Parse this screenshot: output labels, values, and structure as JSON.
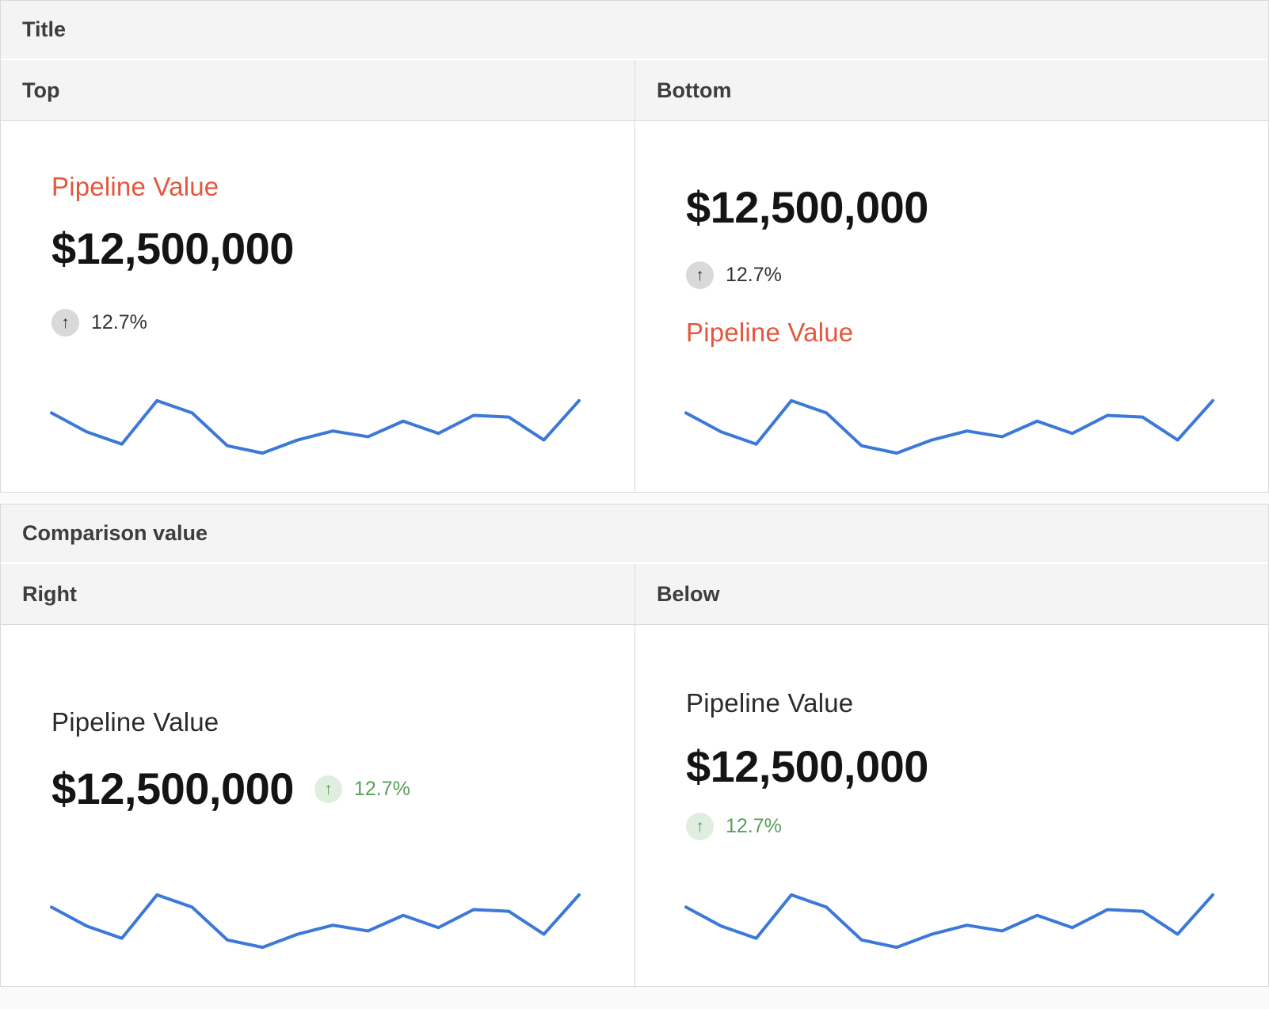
{
  "sections": {
    "title": {
      "header": "Title",
      "columns": [
        {
          "label": "Top"
        },
        {
          "label": "Bottom"
        }
      ]
    },
    "comparison": {
      "header": "Comparison value",
      "columns": [
        {
          "label": "Right"
        },
        {
          "label": "Below"
        }
      ]
    }
  },
  "kpi": {
    "title": "Pipeline Value",
    "value": "$12,500,000",
    "comparison_value": "12.7%",
    "arrow_icon": "↑"
  },
  "colors": {
    "title_accent": "#e4573d",
    "title_neutral": "#2b2b2b",
    "value_color": "#141414",
    "sparkline": "#3c78d8",
    "neutral_badge_bg": "#d9d9d9",
    "neutral_badge_fg": "#333333",
    "neutral_text": "#333333",
    "positive_badge_bg": "#dfeedf",
    "positive_fg": "#58a058",
    "header_bg": "#f4f4f4",
    "header_fg": "#3d3d3d",
    "border": "#d9d9d9"
  },
  "chart_data": [
    {
      "type": "line",
      "card": "Title / Top",
      "name": "Pipeline Value trend sparkline",
      "values": [
        49,
        26,
        11,
        64,
        49,
        9,
        0,
        16,
        27,
        20,
        39,
        24,
        46,
        44,
        16,
        64
      ],
      "units": "relative (no axes, ticks or labels shown)",
      "grid": false,
      "legend": false,
      "color": "#3c78d8"
    },
    {
      "type": "line",
      "card": "Title / Bottom",
      "name": "Pipeline Value trend sparkline",
      "values": [
        49,
        26,
        11,
        64,
        49,
        9,
        0,
        16,
        27,
        20,
        39,
        24,
        46,
        44,
        16,
        64
      ],
      "units": "relative (no axes, ticks or labels shown)",
      "grid": false,
      "legend": false,
      "color": "#3c78d8"
    },
    {
      "type": "line",
      "card": "Comparison value / Right",
      "name": "Pipeline Value trend sparkline",
      "values": [
        49,
        26,
        11,
        64,
        49,
        9,
        0,
        16,
        27,
        20,
        39,
        24,
        46,
        44,
        16,
        64
      ],
      "units": "relative (no axes, ticks or labels shown)",
      "grid": false,
      "legend": false,
      "color": "#3c78d8"
    },
    {
      "type": "line",
      "card": "Comparison value / Below",
      "name": "Pipeline Value trend sparkline",
      "values": [
        49,
        26,
        11,
        64,
        49,
        9,
        0,
        16,
        27,
        20,
        39,
        24,
        46,
        44,
        16,
        64
      ],
      "units": "relative (no axes, ticks or labels shown)",
      "grid": false,
      "legend": false,
      "color": "#3c78d8"
    }
  ]
}
